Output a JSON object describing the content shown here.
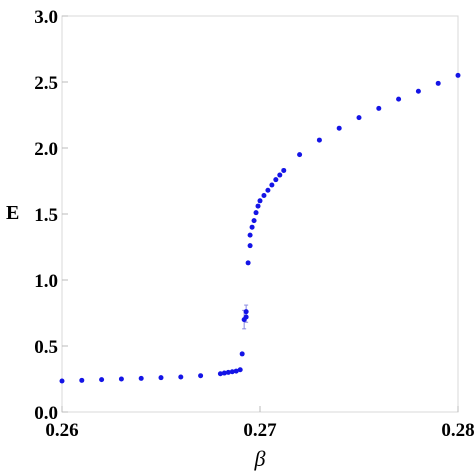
{
  "chart_data": {
    "type": "scatter",
    "title": "",
    "xlabel": "β",
    "ylabel": "E",
    "xlim": [
      0.26,
      0.28
    ],
    "ylim": [
      0,
      3.0
    ],
    "grid": false,
    "xticks": [
      0.26,
      0.27,
      0.28
    ],
    "xtick_labels": [
      "0.26",
      "0.27",
      "0.28"
    ],
    "yticks": [
      0.0,
      0.5,
      1.0,
      1.5,
      2.0,
      2.5,
      3.0
    ],
    "ytick_labels": [
      "0.0",
      "0.5",
      "1.0",
      "1.5",
      "2.0",
      "2.5",
      "3.0"
    ],
    "marker_color": "#1414e6",
    "series": [
      {
        "points": [
          {
            "x": 0.26,
            "y": 0.235
          },
          {
            "x": 0.261,
            "y": 0.24
          },
          {
            "x": 0.262,
            "y": 0.245
          },
          {
            "x": 0.263,
            "y": 0.25
          },
          {
            "x": 0.264,
            "y": 0.255
          },
          {
            "x": 0.265,
            "y": 0.26
          },
          {
            "x": 0.266,
            "y": 0.265
          },
          {
            "x": 0.267,
            "y": 0.275
          },
          {
            "x": 0.268,
            "y": 0.29
          },
          {
            "x": 0.2682,
            "y": 0.295
          },
          {
            "x": 0.2684,
            "y": 0.3
          },
          {
            "x": 0.2686,
            "y": 0.305
          },
          {
            "x": 0.2688,
            "y": 0.31
          },
          {
            "x": 0.269,
            "y": 0.32
          },
          {
            "x": 0.2691,
            "y": 0.44
          },
          {
            "x": 0.2692,
            "y": 0.7,
            "err": 0.07
          },
          {
            "x": 0.2693,
            "y": 0.76,
            "err": 0.05
          },
          {
            "x": 0.2693,
            "y": 0.72,
            "err": 0.04
          },
          {
            "x": 0.2694,
            "y": 1.13
          },
          {
            "x": 0.2695,
            "y": 1.26
          },
          {
            "x": 0.2695,
            "y": 1.34
          },
          {
            "x": 0.2696,
            "y": 1.4
          },
          {
            "x": 0.2697,
            "y": 1.45
          },
          {
            "x": 0.2698,
            "y": 1.51
          },
          {
            "x": 0.2699,
            "y": 1.56
          },
          {
            "x": 0.27,
            "y": 1.6
          },
          {
            "x": 0.2702,
            "y": 1.64
          },
          {
            "x": 0.2704,
            "y": 1.68
          },
          {
            "x": 0.2706,
            "y": 1.72
          },
          {
            "x": 0.2708,
            "y": 1.76
          },
          {
            "x": 0.271,
            "y": 1.795
          },
          {
            "x": 0.2712,
            "y": 1.83
          },
          {
            "x": 0.272,
            "y": 1.95
          },
          {
            "x": 0.273,
            "y": 2.06
          },
          {
            "x": 0.274,
            "y": 2.15
          },
          {
            "x": 0.275,
            "y": 2.23
          },
          {
            "x": 0.276,
            "y": 2.3
          },
          {
            "x": 0.277,
            "y": 2.37
          },
          {
            "x": 0.278,
            "y": 2.43
          },
          {
            "x": 0.279,
            "y": 2.49
          },
          {
            "x": 0.28,
            "y": 2.55
          }
        ]
      }
    ]
  }
}
